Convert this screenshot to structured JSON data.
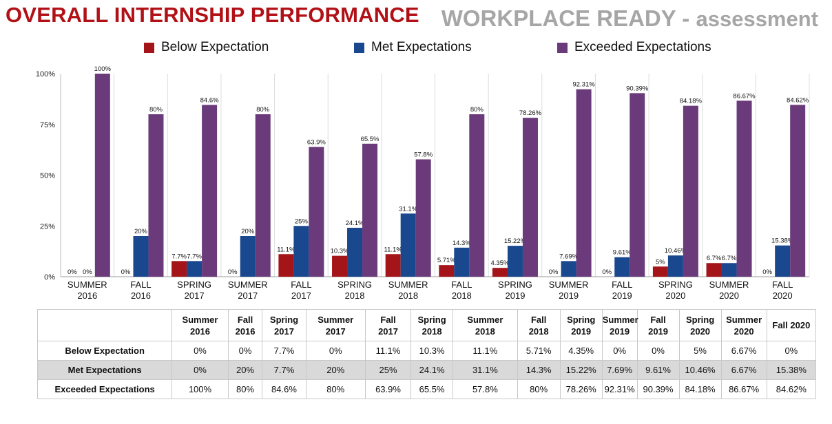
{
  "header": {
    "title": "OVERALL INTERNSHIP PERFORMANCE",
    "right_title_main": "WORKPLACE READY - ",
    "right_title_sub": "assessment"
  },
  "colors": {
    "below": "#a31518",
    "met": "#19488f",
    "exceeded": "#6b3a7b",
    "title_red": "#b11116",
    "title_gray": "#a6a6a6"
  },
  "chart_data": {
    "type": "bar",
    "categories": [
      "SUMMER\n2016",
      "FALL\n2016",
      "SPRING\n2017",
      "SUMMER\n2017",
      "FALL\n2017",
      "SPRING\n2018",
      "SUMMER\n2018",
      "FALL\n2018",
      "SPRING\n2019",
      "SUMMER\n2019",
      "FALL\n2019",
      "SPRING\n2020",
      "SUMMER\n2020",
      "FALL\n2020"
    ],
    "series": [
      {
        "name": "Below Expectation",
        "values": [
          0,
          0,
          7.7,
          0,
          11.1,
          10.3,
          11.1,
          5.71,
          4.35,
          0,
          0,
          5,
          6.7,
          0
        ],
        "labels": [
          "0%",
          "0%",
          "7.7%",
          "0%",
          "11.1%",
          "10.3%",
          "11.1%",
          "5.71%",
          "4.35%",
          "0%",
          "0%",
          "5%",
          "6.7%",
          "0%"
        ]
      },
      {
        "name": "Met Expectations",
        "values": [
          0,
          20,
          7.7,
          20,
          25,
          24.1,
          31.1,
          14.3,
          15.22,
          7.69,
          9.61,
          10.46,
          6.7,
          15.38
        ],
        "labels": [
          "0%",
          "20%",
          "7.7%",
          "20%",
          "25%",
          "24.1%",
          "31.1%",
          "14.3%",
          "15.22%",
          "7.69%",
          "9.61%",
          "10.46%",
          "6.7%",
          "15.38%"
        ]
      },
      {
        "name": "Exceeded Expectations",
        "values": [
          100,
          80,
          84.6,
          80,
          63.9,
          65.5,
          57.8,
          80,
          78.26,
          92.31,
          90.39,
          84.18,
          86.67,
          84.62
        ],
        "labels": [
          "100%",
          "80%",
          "84.6%",
          "80%",
          "63.9%",
          "65.5%",
          "57.8%",
          "80%",
          "78.26%",
          "92.31%",
          "90.39%",
          "84.18%",
          "86.67%",
          "84.62%"
        ]
      }
    ],
    "ylim": [
      0,
      100
    ],
    "yticks": [
      "0%",
      "25%",
      "50%",
      "75%",
      "100%"
    ],
    "grid": "vertical",
    "legend": "top"
  },
  "table": {
    "columns": [
      "Summer\n2016",
      "Fall\n2016",
      "Spring\n2017",
      "Summer\n2017",
      "Fall\n2017",
      "Spring\n2018",
      "Summer\n2018",
      "Fall\n2018",
      "Spring\n2019",
      "Summer\n2019",
      "Fall\n2019",
      "Spring\n2020",
      "Summer\n2020",
      "Fall 2020"
    ],
    "rows": [
      {
        "label": "Below Expectation",
        "cells": [
          "0%",
          "0%",
          "7.7%",
          "0%",
          "11.1%",
          "10.3%",
          "11.1%",
          "5.71%",
          "4.35%",
          "0%",
          "0%",
          "5%",
          "6.67%",
          "0%"
        ]
      },
      {
        "label": "Met Expectations",
        "cells": [
          "0%",
          "20%",
          "7.7%",
          "20%",
          "25%",
          "24.1%",
          "31.1%",
          "14.3%",
          "15.22%",
          "7.69%",
          "9.61%",
          "10.46%",
          "6.67%",
          "15.38%"
        ]
      },
      {
        "label": "Exceeded Expectations",
        "cells": [
          "100%",
          "80%",
          "84.6%",
          "80%",
          "63.9%",
          "65.5%",
          "57.8%",
          "80%",
          "78.26%",
          "92.31%",
          "90.39%",
          "84.18%",
          "86.67%",
          "84.62%"
        ]
      }
    ]
  }
}
